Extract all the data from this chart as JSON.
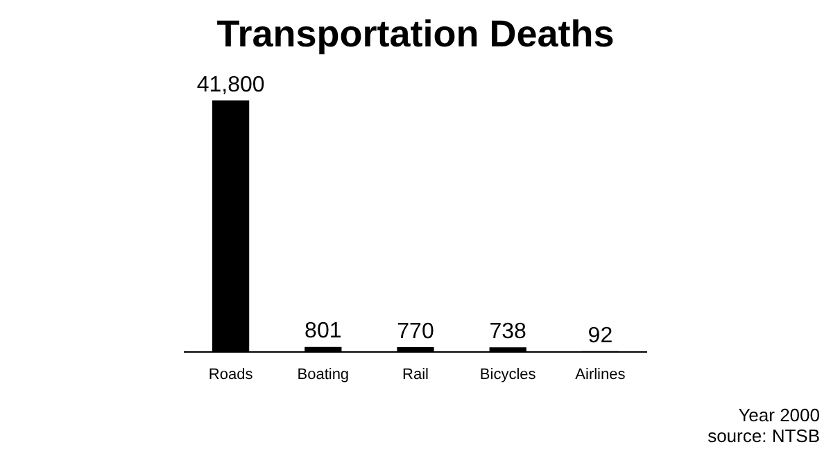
{
  "chart_data": {
    "type": "bar",
    "title": "Transportation Deaths",
    "categories": [
      "Roads",
      "Boating",
      "Rail",
      "Bicycles",
      "Airlines"
    ],
    "values": [
      41800,
      801,
      770,
      738,
      92
    ],
    "value_labels": [
      "41,800",
      "801",
      "770",
      "738",
      "92"
    ],
    "color": "#000000",
    "grid": false,
    "legend": false,
    "annotations": [
      "Year 2000",
      "source: NTSB"
    ]
  }
}
